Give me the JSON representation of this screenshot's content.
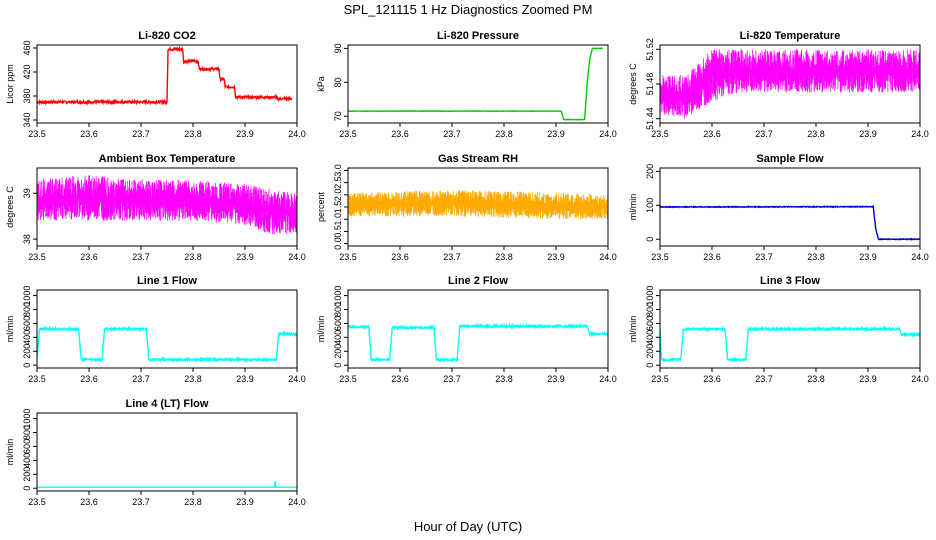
{
  "title": "SPL_121115  1 Hz Diagnostics Zoomed PM",
  "xlabel": "Hour of Day (UTC)",
  "chart_data": [
    {
      "type": "line",
      "title": "Li-820 CO2",
      "ylabel": "Licor ppm",
      "color": "#ff0000",
      "mode": "solid",
      "xlim": [
        23.5,
        24.0
      ],
      "ylim": [
        335,
        465
      ],
      "yticks": [
        340,
        380,
        420,
        460
      ],
      "xticks": [
        23.5,
        23.6,
        23.7,
        23.8,
        23.9,
        24.0
      ],
      "noise": 2,
      "x": [
        23.5,
        23.75,
        23.752,
        23.78,
        23.782,
        23.81,
        23.812,
        23.85,
        23.852,
        23.86,
        23.862,
        23.88,
        23.882,
        23.96,
        23.962,
        23.99
      ],
      "y": [
        370,
        370,
        458,
        458,
        438,
        438,
        425,
        425,
        408,
        408,
        395,
        395,
        378,
        378,
        375,
        376
      ]
    },
    {
      "type": "line",
      "title": "Li-820 Pressure",
      "ylabel": "kPa",
      "color": "#00cc00",
      "mode": "solid",
      "xlim": [
        23.5,
        24.0
      ],
      "ylim": [
        68,
        91
      ],
      "yticks": [
        70,
        80,
        90
      ],
      "xticks": [
        23.5,
        23.6,
        23.7,
        23.8,
        23.9,
        24.0
      ],
      "noise": 0.05,
      "x": [
        23.5,
        23.91,
        23.915,
        23.955,
        23.96,
        23.965,
        23.97,
        23.99
      ],
      "y": [
        71.5,
        71.5,
        69,
        69,
        80,
        87,
        90,
        90
      ]
    },
    {
      "type": "band",
      "title": "Li-820 Temperature",
      "ylabel": "degrees C",
      "color": "#ff00ff",
      "mode": "band",
      "xlim": [
        23.5,
        24.0
      ],
      "ylim": [
        51.435,
        51.525
      ],
      "yticks": [
        51.44,
        51.48,
        51.52
      ],
      "xticks": [
        23.5,
        23.6,
        23.7,
        23.8,
        23.9,
        24.0
      ],
      "x": [
        23.5,
        23.55,
        23.6,
        23.65,
        23.7,
        23.8,
        23.9,
        24.0
      ],
      "lo": [
        51.445,
        51.44,
        51.46,
        51.47,
        51.47,
        51.47,
        51.47,
        51.47
      ],
      "hi": [
        51.49,
        51.49,
        51.52,
        51.52,
        51.52,
        51.52,
        51.52,
        51.52
      ]
    },
    {
      "type": "band",
      "title": "Ambient Box Temperature",
      "ylabel": "degrees C",
      "color": "#ff00ff",
      "mode": "band",
      "xlim": [
        23.5,
        24.0
      ],
      "ylim": [
        37.85,
        39.55
      ],
      "yticks": [
        38.0,
        39.0
      ],
      "xticks": [
        23.5,
        23.6,
        23.7,
        23.8,
        23.9,
        24.0
      ],
      "x": [
        23.5,
        23.6,
        23.7,
        23.8,
        23.9,
        23.95,
        24.0
      ],
      "lo": [
        38.4,
        38.4,
        38.4,
        38.4,
        38.3,
        38.1,
        38.1
      ],
      "hi": [
        39.3,
        39.4,
        39.3,
        39.3,
        39.2,
        39.1,
        39.0
      ]
    },
    {
      "type": "band",
      "title": "Gas Stream RH",
      "ylabel": "percent",
      "color": "#ffaa00",
      "mode": "band",
      "xlim": [
        23.5,
        24.0
      ],
      "ylim": [
        -0.1,
        3.1
      ],
      "yticks": [
        0.0,
        0.5,
        1.0,
        1.5,
        2.0,
        2.5,
        3.0
      ],
      "xticks": [
        23.5,
        23.6,
        23.7,
        23.8,
        23.9,
        24.0
      ],
      "x": [
        23.5,
        23.7,
        23.9,
        24.0
      ],
      "lo": [
        1.1,
        1.1,
        1.0,
        1.0
      ],
      "hi": [
        2.1,
        2.2,
        2.1,
        2.0
      ]
    },
    {
      "type": "line",
      "title": "Sample Flow",
      "ylabel": "ml/min",
      "color": "#0000cc",
      "mode": "solid",
      "xlim": [
        23.5,
        24.0
      ],
      "ylim": [
        -20,
        210
      ],
      "yticks": [
        0,
        100,
        200
      ],
      "xticks": [
        23.5,
        23.6,
        23.7,
        23.8,
        23.9,
        24.0
      ],
      "noise": 1,
      "x": [
        23.5,
        23.91,
        23.915,
        23.92,
        24.0
      ],
      "y": [
        95,
        96,
        30,
        0,
        0
      ]
    },
    {
      "type": "line",
      "title": "Line 1 Flow",
      "ylabel": "ml/min",
      "color": "#00ffff",
      "mode": "solid",
      "xlim": [
        23.5,
        24.0
      ],
      "ylim": [
        -40,
        1080
      ],
      "yticks": [
        0,
        200,
        400,
        600,
        800,
        1000
      ],
      "xticks": [
        23.5,
        23.6,
        23.7,
        23.8,
        23.9,
        24.0
      ],
      "noise": 15,
      "x": [
        23.5,
        23.505,
        23.58,
        23.585,
        23.625,
        23.63,
        23.71,
        23.715,
        23.96,
        23.965,
        24.0
      ],
      "y": [
        100,
        520,
        520,
        80,
        80,
        520,
        520,
        80,
        80,
        450,
        450
      ]
    },
    {
      "type": "line",
      "title": "Line 2 Flow",
      "ylabel": "ml/min",
      "color": "#00ffff",
      "mode": "solid",
      "xlim": [
        23.5,
        24.0
      ],
      "ylim": [
        -40,
        1080
      ],
      "yticks": [
        0,
        200,
        400,
        600,
        800,
        1000
      ],
      "xticks": [
        23.5,
        23.6,
        23.7,
        23.8,
        23.9,
        24.0
      ],
      "noise": 15,
      "x": [
        23.5,
        23.54,
        23.545,
        23.58,
        23.585,
        23.665,
        23.67,
        23.71,
        23.715,
        23.96,
        23.965,
        24.0
      ],
      "y": [
        550,
        550,
        80,
        80,
        540,
        540,
        80,
        80,
        560,
        560,
        450,
        450
      ]
    },
    {
      "type": "line",
      "title": "Line 3 Flow",
      "ylabel": "ml/min",
      "color": "#00ffff",
      "mode": "solid",
      "xlim": [
        23.5,
        24.0
      ],
      "ylim": [
        -40,
        1080
      ],
      "yticks": [
        0,
        200,
        400,
        600,
        800,
        1000
      ],
      "xticks": [
        23.5,
        23.6,
        23.7,
        23.8,
        23.9,
        24.0
      ],
      "noise": 15,
      "x": [
        23.5,
        23.503,
        23.54,
        23.545,
        23.625,
        23.63,
        23.665,
        23.67,
        23.96,
        23.965,
        24.0
      ],
      "y": [
        520,
        80,
        80,
        520,
        520,
        80,
        80,
        520,
        520,
        440,
        440
      ]
    },
    {
      "type": "line",
      "title": "Line 4 (LT) Flow",
      "ylabel": "ml/min",
      "color": "#00ffff",
      "mode": "solid",
      "xlim": [
        23.5,
        24.0
      ],
      "ylim": [
        -40,
        1080
      ],
      "yticks": [
        0,
        200,
        400,
        600,
        800,
        1000
      ],
      "xticks": [
        23.5,
        23.6,
        23.7,
        23.8,
        23.9,
        24.0
      ],
      "noise": 0,
      "x": [
        23.5,
        23.957,
        23.958,
        23.959,
        23.96,
        24.0
      ],
      "y": [
        15,
        15,
        120,
        15,
        15,
        15
      ]
    }
  ]
}
